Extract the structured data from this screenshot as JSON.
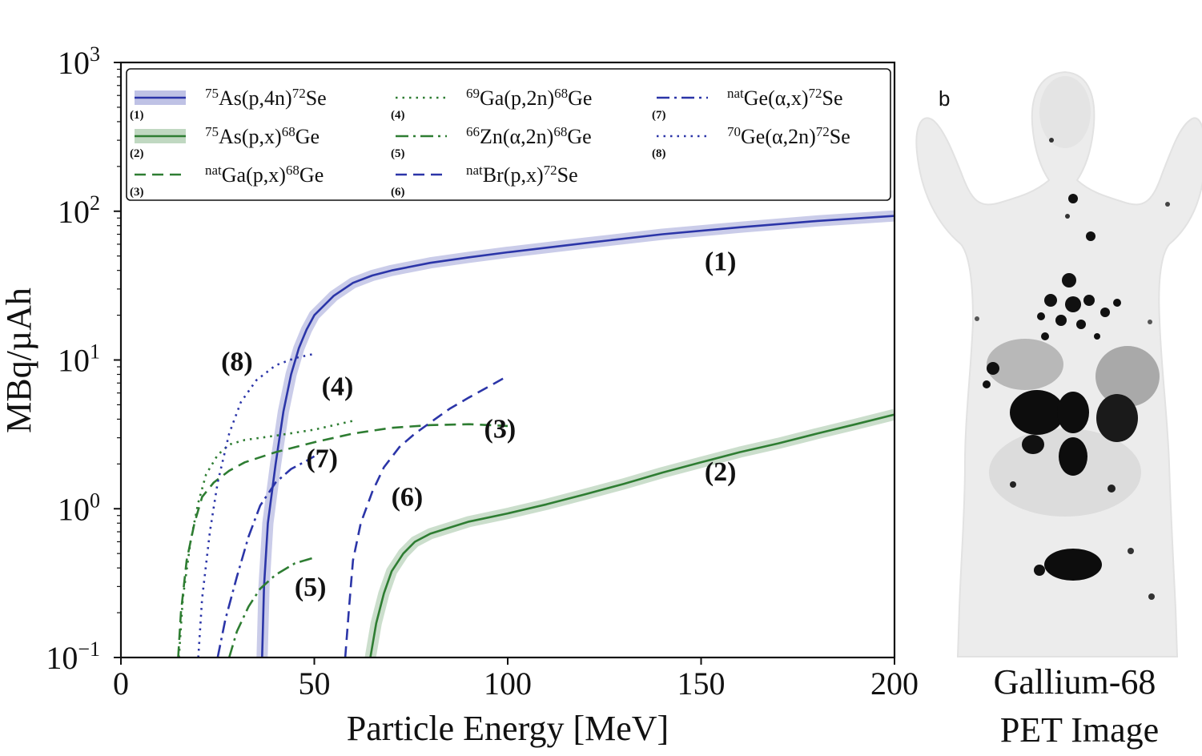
{
  "chart_data": {
    "type": "line",
    "y_scale": "log",
    "xlabel": "Particle Energy [MeV]",
    "ylabel": "MBq/µAh",
    "xlim": [
      0,
      200
    ],
    "ylim": [
      0.1,
      1000
    ],
    "x_ticks": [
      "0",
      "50",
      "100",
      "150",
      "200"
    ],
    "y_ticks": [
      {
        "base": "10",
        "exp": "3",
        "value": 1000
      },
      {
        "base": "10",
        "exp": "2",
        "value": 100
      },
      {
        "base": "10",
        "exp": "1",
        "value": 10
      },
      {
        "base": "10",
        "exp": "0",
        "value": 1
      },
      {
        "base": "10",
        "exp": "−1",
        "value": 0.1
      }
    ],
    "legend_placement": "top",
    "series": [
      {
        "id": "(1)",
        "legend": [
          {
            "t": "75",
            "sup": true
          },
          {
            "t": "As(p,4n)"
          },
          {
            "t": "72",
            "sup": true
          },
          {
            "t": "Se"
          }
        ],
        "color": "#2b35a8",
        "dash": "solid",
        "band": true,
        "points": [
          [
            36.5,
            0.1
          ],
          [
            37,
            0.3
          ],
          [
            38,
            0.8
          ],
          [
            40,
            2
          ],
          [
            42,
            4.5
          ],
          [
            44,
            8
          ],
          [
            46,
            12
          ],
          [
            48,
            16
          ],
          [
            50,
            20
          ],
          [
            55,
            27
          ],
          [
            60,
            33
          ],
          [
            65,
            37
          ],
          [
            70,
            40
          ],
          [
            80,
            45
          ],
          [
            90,
            49
          ],
          [
            100,
            53
          ],
          [
            120,
            61
          ],
          [
            140,
            70
          ],
          [
            160,
            78
          ],
          [
            180,
            86
          ],
          [
            200,
            93
          ]
        ]
      },
      {
        "id": "(2)",
        "legend": [
          {
            "t": "75",
            "sup": true
          },
          {
            "t": "As(p,x)"
          },
          {
            "t": "68",
            "sup": true
          },
          {
            "t": "Ge"
          }
        ],
        "color": "#2e7d32",
        "dash": "solid",
        "band": true,
        "points": [
          [
            64.5,
            0.1
          ],
          [
            66,
            0.17
          ],
          [
            68,
            0.27
          ],
          [
            70,
            0.38
          ],
          [
            73,
            0.5
          ],
          [
            76,
            0.6
          ],
          [
            80,
            0.68
          ],
          [
            90,
            0.82
          ],
          [
            100,
            0.93
          ],
          [
            110,
            1.07
          ],
          [
            120,
            1.25
          ],
          [
            130,
            1.47
          ],
          [
            140,
            1.75
          ],
          [
            150,
            2.05
          ],
          [
            160,
            2.4
          ],
          [
            170,
            2.75
          ],
          [
            180,
            3.2
          ],
          [
            190,
            3.7
          ],
          [
            200,
            4.3
          ]
        ]
      },
      {
        "id": "(3)",
        "legend": [
          {
            "t": "nat",
            "sup": true
          },
          {
            "t": "Ga(p,x)"
          },
          {
            "t": "68",
            "sup": true
          },
          {
            "t": "Ge"
          }
        ],
        "color": "#2e7d32",
        "dash": "dashed",
        "points": [
          [
            14.8,
            0.1
          ],
          [
            15.5,
            0.2
          ],
          [
            17,
            0.45
          ],
          [
            19,
            0.8
          ],
          [
            21,
            1.2
          ],
          [
            24,
            1.5
          ],
          [
            28,
            1.8
          ],
          [
            32,
            2.05
          ],
          [
            40,
            2.4
          ],
          [
            50,
            2.8
          ],
          [
            60,
            3.2
          ],
          [
            70,
            3.5
          ],
          [
            80,
            3.65
          ],
          [
            90,
            3.7
          ],
          [
            100,
            3.6
          ]
        ]
      },
      {
        "id": "(4)",
        "legend": [
          {
            "t": "69",
            "sup": true
          },
          {
            "t": "Ga(p,2n)"
          },
          {
            "t": "68",
            "sup": true
          },
          {
            "t": "Ge"
          }
        ],
        "color": "#2e7d32",
        "dash": "dotted",
        "points": [
          [
            15,
            0.1
          ],
          [
            16,
            0.25
          ],
          [
            18,
            0.6
          ],
          [
            20,
            1.1
          ],
          [
            22,
            1.7
          ],
          [
            25,
            2.3
          ],
          [
            28,
            2.7
          ],
          [
            32,
            2.9
          ],
          [
            40,
            3.1
          ],
          [
            50,
            3.4
          ],
          [
            60,
            3.9
          ]
        ]
      },
      {
        "id": "(5)",
        "legend": [
          {
            "t": "66",
            "sup": true
          },
          {
            "t": "Zn(α,2n)"
          },
          {
            "t": "68",
            "sup": true
          },
          {
            "t": "Ge"
          }
        ],
        "color": "#2e7d32",
        "dash": "dashdot",
        "points": [
          [
            28,
            0.1
          ],
          [
            30,
            0.15
          ],
          [
            33,
            0.22
          ],
          [
            36,
            0.29
          ],
          [
            40,
            0.36
          ],
          [
            45,
            0.43
          ],
          [
            50,
            0.47
          ]
        ]
      },
      {
        "id": "(6)",
        "legend": [
          {
            "t": "nat",
            "sup": true
          },
          {
            "t": "Br(p,x)"
          },
          {
            "t": "72",
            "sup": true
          },
          {
            "t": "Se"
          }
        ],
        "color": "#2b35a8",
        "dash": "dashed",
        "points": [
          [
            58,
            0.1
          ],
          [
            59,
            0.22
          ],
          [
            60,
            0.45
          ],
          [
            62,
            0.8
          ],
          [
            65,
            1.3
          ],
          [
            68,
            1.9
          ],
          [
            72,
            2.6
          ],
          [
            76,
            3.2
          ],
          [
            80,
            3.8
          ],
          [
            85,
            4.7
          ],
          [
            90,
            5.6
          ],
          [
            95,
            6.6
          ],
          [
            100,
            7.8
          ]
        ]
      },
      {
        "id": "(7)",
        "legend": [
          {
            "t": "nat",
            "sup": true
          },
          {
            "t": "Ge(α,x)"
          },
          {
            "t": "72",
            "sup": true
          },
          {
            "t": "Se"
          }
        ],
        "color": "#2b35a8",
        "dash": "dashdot",
        "points": [
          [
            25,
            0.1
          ],
          [
            27,
            0.18
          ],
          [
            30,
            0.35
          ],
          [
            33,
            0.65
          ],
          [
            36,
            1.05
          ],
          [
            40,
            1.5
          ],
          [
            44,
            1.85
          ],
          [
            48,
            2.1
          ],
          [
            50,
            2.25
          ]
        ]
      },
      {
        "id": "(8)",
        "legend": [
          {
            "t": "70",
            "sup": true
          },
          {
            "t": "Ge(α,2n)"
          },
          {
            "t": "72",
            "sup": true
          },
          {
            "t": "Se"
          }
        ],
        "color": "#2b35a8",
        "dash": "dotted",
        "points": [
          [
            20,
            0.1
          ],
          [
            21,
            0.25
          ],
          [
            23,
            0.7
          ],
          [
            25,
            1.5
          ],
          [
            28,
            3.2
          ],
          [
            31,
            5.2
          ],
          [
            35,
            7.3
          ],
          [
            40,
            9.2
          ],
          [
            45,
            10.3
          ],
          [
            50,
            11
          ]
        ]
      }
    ],
    "curve_labels": [
      {
        "text": "(1)",
        "x": 155,
        "y": 40
      },
      {
        "text": "(2)",
        "x": 155,
        "y": 1.55
      },
      {
        "text": "(3)",
        "x": 98,
        "y": 3.0
      },
      {
        "text": "(4)",
        "x": 56,
        "y": 5.8
      },
      {
        "text": "(5)",
        "x": 49,
        "y": 0.26
      },
      {
        "text": "(6)",
        "x": 74,
        "y": 1.05
      },
      {
        "text": "(7)",
        "x": 52,
        "y": 1.9
      },
      {
        "text": "(8)",
        "x": 30,
        "y": 8.5
      }
    ]
  },
  "pet_panel": {
    "panel_letter": "b",
    "caption_line1": "Gallium-68",
    "caption_line2": "PET Image"
  }
}
